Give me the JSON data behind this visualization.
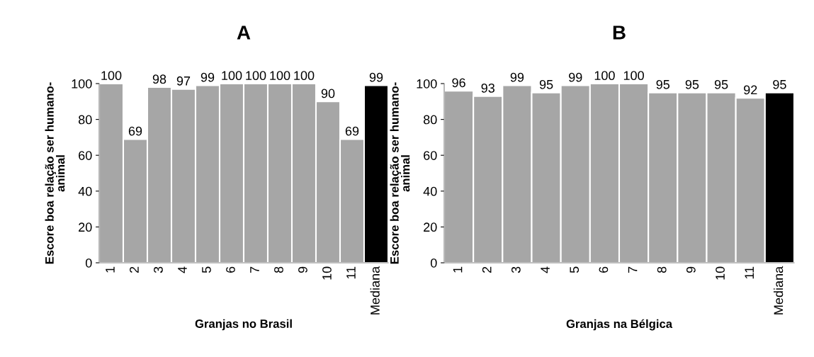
{
  "chart_data": [
    {
      "type": "bar",
      "title": "A",
      "xlabel": "Granjas no Brasil",
      "ylabel": "Escore boa relação ser humano-\nanimal",
      "categories": [
        "1",
        "2",
        "3",
        "4",
        "5",
        "6",
        "7",
        "8",
        "9",
        "10",
        "11",
        "Mediana"
      ],
      "values": [
        100,
        69,
        98,
        97,
        99,
        100,
        100,
        100,
        100,
        90,
        69,
        99
      ],
      "colors": [
        "#a6a6a6",
        "#a6a6a6",
        "#a6a6a6",
        "#a6a6a6",
        "#a6a6a6",
        "#a6a6a6",
        "#a6a6a6",
        "#a6a6a6",
        "#a6a6a6",
        "#a6a6a6",
        "#a6a6a6",
        "#000000"
      ],
      "ylim": [
        0,
        100
      ],
      "yticks": [
        0,
        20,
        40,
        60,
        80,
        100
      ],
      "data_labels": true,
      "grid": false,
      "legend": false
    },
    {
      "type": "bar",
      "title": "B",
      "xlabel": "Granjas na Bélgica",
      "ylabel": "Escore boa relação ser humano-\nanimal",
      "categories": [
        "1",
        "2",
        "3",
        "4",
        "5",
        "6",
        "7",
        "8",
        "9",
        "10",
        "11",
        "Mediana"
      ],
      "values": [
        96,
        93,
        99,
        95,
        99,
        100,
        100,
        95,
        95,
        95,
        92,
        95
      ],
      "colors": [
        "#a6a6a6",
        "#a6a6a6",
        "#a6a6a6",
        "#a6a6a6",
        "#a6a6a6",
        "#a6a6a6",
        "#a6a6a6",
        "#a6a6a6",
        "#a6a6a6",
        "#a6a6a6",
        "#a6a6a6",
        "#000000"
      ],
      "ylim": [
        0,
        100
      ],
      "yticks": [
        0,
        20,
        40,
        60,
        80,
        100
      ],
      "data_labels": true,
      "grid": false,
      "legend": false
    }
  ]
}
